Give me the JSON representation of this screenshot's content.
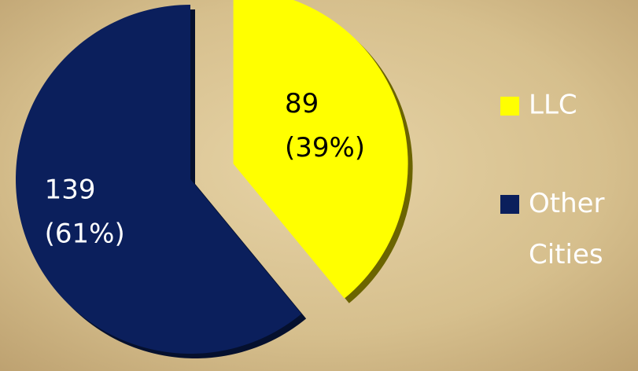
{
  "chart_data": {
    "type": "pie",
    "categories": [
      "LLC",
      "Other Cities"
    ],
    "values": [
      89,
      139
    ],
    "percent_labels": [
      "(39%)",
      "(61%)"
    ],
    "colors": [
      "#ffff00",
      "#0b1f5c"
    ],
    "exploded": [
      true,
      false
    ],
    "legend": "right"
  }
}
